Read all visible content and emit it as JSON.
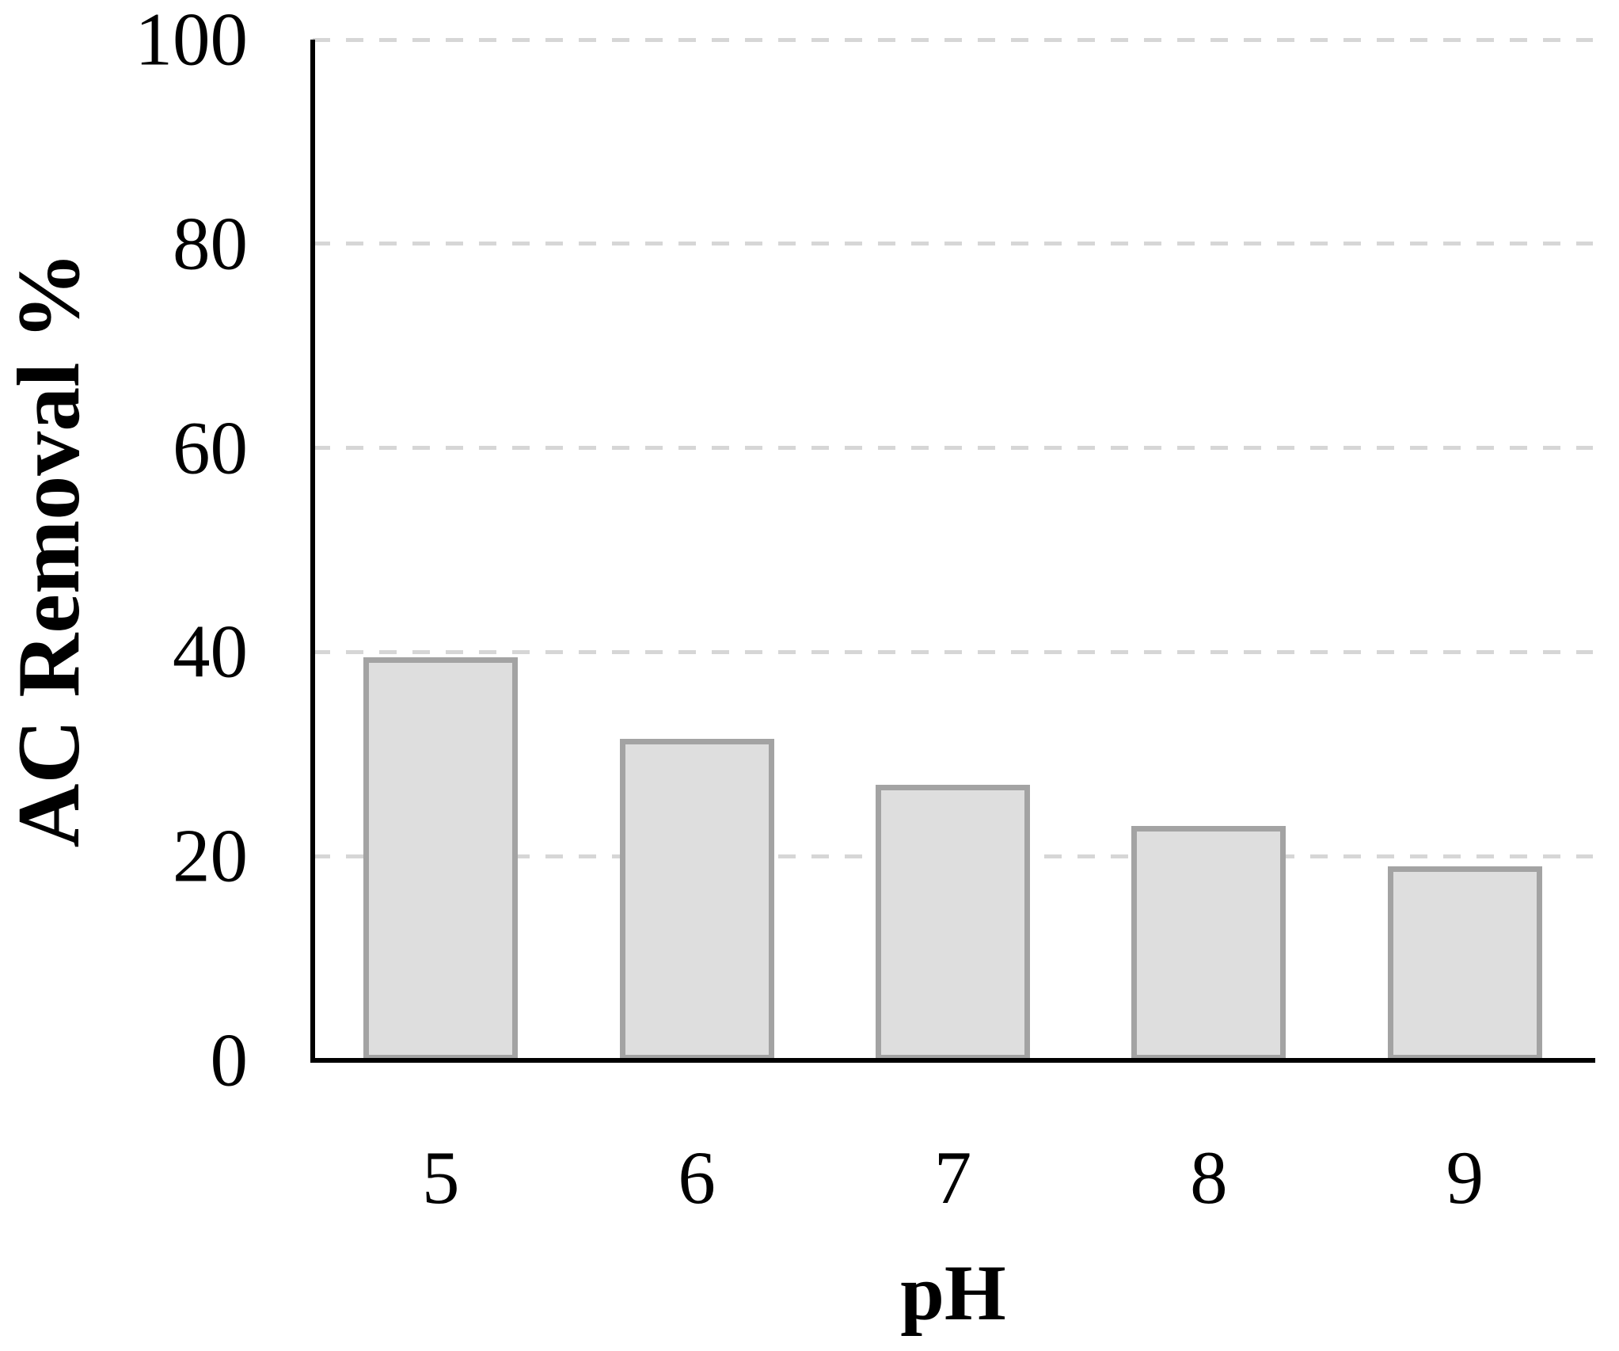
{
  "figure": {
    "background": "#ffffff"
  },
  "chart_data": {
    "type": "bar",
    "categories": [
      "5",
      "6",
      "7",
      "8",
      "9"
    ],
    "values": [
      39.5,
      31.5,
      27,
      23,
      19
    ],
    "title": "",
    "xlabel": "pH",
    "ylabel": "AC Removal %",
    "ylim": [
      0,
      100
    ],
    "yticks": [
      100,
      80,
      60,
      40,
      20,
      0
    ],
    "grid": "horizontal-dashed",
    "legend": "none",
    "colors": {
      "bar_fill": "#dedede",
      "bar_border": "#a3a3a3",
      "gridline": "#d6d6d6",
      "axis": "#000000",
      "text": "#000000"
    }
  }
}
